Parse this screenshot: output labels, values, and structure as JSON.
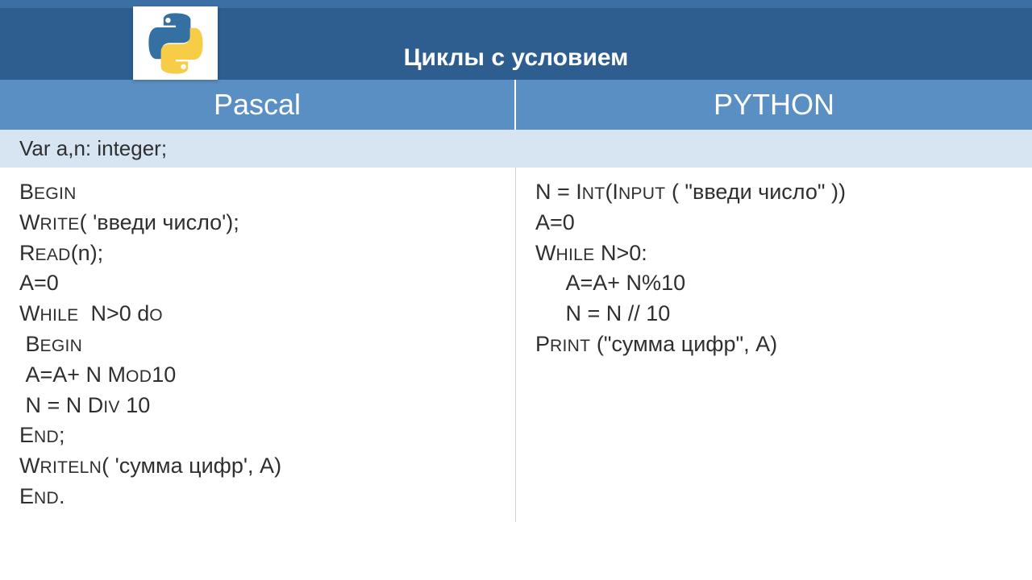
{
  "header": {
    "title": "Циклы с условием",
    "bg_color": "#2e5e8f",
    "logo": {
      "top_color": "#3570a3",
      "bottom_color": "#f7cc47"
    }
  },
  "columns": {
    "left": "Pascal",
    "right": "PYTHON",
    "bg_color": "#5a8fc4",
    "text_color": "#ffffff",
    "fontsize": 36
  },
  "subheader": {
    "left": "Var a,n: integer;",
    "bg_color": "#d7e4f2",
    "fontsize": 26
  },
  "code": {
    "pascal": {
      "lines": [
        "Begin",
        "Write( 'введи число');",
        "Read(n);",
        "A=0",
        "While  N>0 do",
        " Begin",
        " A=A+ N MOD10",
        " N = N DIV 10",
        "End;",
        "Writeln( 'сумма цифр', A)",
        "End."
      ]
    },
    "python": {
      "lines": [
        "N = INT(INPUT ( \"введи число\" ))",
        "A=0",
        "WHILE N>0:",
        "     A=A+ N%10",
        "     N = N // 10",
        "PRINT (\"сумма цифр\", A)"
      ]
    },
    "fontsize": 27,
    "text_color": "#2f2f2f"
  }
}
